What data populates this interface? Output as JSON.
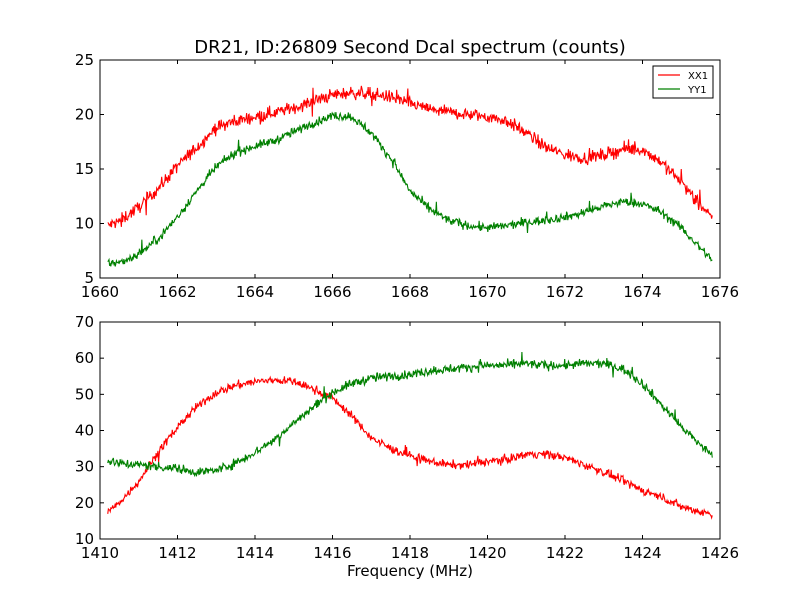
{
  "title": "DR21, ID:26809 Second Dcal spectrum (counts)",
  "colors": {
    "XX1": "#ff0000",
    "YY1": "#008000"
  },
  "chart_data": [
    {
      "type": "line",
      "xlim": [
        1660,
        1676
      ],
      "ylim": [
        5,
        25
      ],
      "xticks": [
        "1660",
        "1662",
        "1664",
        "1666",
        "1668",
        "1670",
        "1672",
        "1674",
        "1676"
      ],
      "yticks": [
        "5",
        "10",
        "15",
        "20",
        "25"
      ],
      "xlabel": "",
      "ylabel": "",
      "legend": {
        "placement": "top-right",
        "entries": [
          "XX1",
          "YY1"
        ]
      },
      "series": [
        {
          "name": "XX1",
          "color": "#ff0000",
          "x": [
            1660.2,
            1660.5,
            1661.0,
            1661.5,
            1662.0,
            1662.5,
            1663.0,
            1663.5,
            1664.0,
            1664.5,
            1665.0,
            1665.5,
            1666.0,
            1666.5,
            1667.0,
            1667.5,
            1668.0,
            1668.5,
            1669.0,
            1669.5,
            1670.0,
            1670.5,
            1671.0,
            1671.5,
            1672.0,
            1672.5,
            1673.0,
            1673.5,
            1674.0,
            1674.5,
            1675.0,
            1675.5,
            1675.8
          ],
          "y": [
            9.8,
            10.2,
            11.5,
            13.2,
            15.3,
            17.0,
            18.8,
            19.4,
            19.8,
            20.2,
            20.6,
            21.2,
            21.8,
            22.0,
            21.9,
            21.6,
            21.0,
            20.5,
            20.2,
            20.0,
            19.8,
            19.4,
            18.3,
            17.0,
            16.3,
            16.0,
            16.3,
            16.8,
            16.8,
            15.6,
            13.8,
            11.6,
            10.4
          ],
          "noise": 0.55
        },
        {
          "name": "YY1",
          "color": "#008000",
          "x": [
            1660.2,
            1660.5,
            1661.0,
            1661.5,
            1662.0,
            1662.5,
            1663.0,
            1663.5,
            1664.0,
            1664.5,
            1665.0,
            1665.5,
            1666.0,
            1666.5,
            1667.0,
            1667.5,
            1668.0,
            1668.5,
            1669.0,
            1669.5,
            1670.0,
            1670.5,
            1671.0,
            1671.5,
            1672.0,
            1672.5,
            1673.0,
            1673.5,
            1674.0,
            1674.5,
            1675.0,
            1675.5,
            1675.8
          ],
          "y": [
            6.4,
            6.4,
            7.2,
            8.6,
            10.6,
            13.0,
            15.2,
            16.5,
            17.1,
            17.6,
            18.4,
            19.2,
            19.9,
            19.8,
            18.3,
            16.0,
            13.0,
            11.3,
            10.3,
            9.8,
            9.6,
            9.8,
            10.1,
            10.3,
            10.6,
            11.0,
            11.6,
            12.0,
            11.8,
            11.0,
            9.6,
            7.7,
            6.7
          ],
          "noise": 0.38
        }
      ]
    },
    {
      "type": "line",
      "xlim": [
        1410,
        1426
      ],
      "ylim": [
        10,
        70
      ],
      "xticks": [
        "1410",
        "1412",
        "1414",
        "1416",
        "1418",
        "1420",
        "1422",
        "1424",
        "1426"
      ],
      "yticks": [
        "10",
        "20",
        "30",
        "40",
        "50",
        "60",
        "70"
      ],
      "xlabel": "Frequency (MHz)",
      "ylabel": "",
      "series": [
        {
          "name": "XX1",
          "color": "#ff0000",
          "x": [
            1410.2,
            1410.5,
            1411.0,
            1411.5,
            1412.0,
            1412.5,
            1413.0,
            1413.5,
            1414.0,
            1414.5,
            1415.0,
            1415.5,
            1416.0,
            1416.5,
            1417.0,
            1417.5,
            1418.0,
            1418.5,
            1419.0,
            1419.5,
            1420.0,
            1420.5,
            1421.0,
            1421.5,
            1422.0,
            1422.5,
            1423.0,
            1423.5,
            1424.0,
            1424.5,
            1425.0,
            1425.5,
            1425.8
          ],
          "y": [
            17.5,
            20.0,
            26.0,
            34.0,
            41.0,
            46.5,
            50.5,
            52.5,
            53.5,
            54.0,
            53.5,
            51.5,
            49.0,
            44.0,
            38.0,
            35.0,
            33.0,
            31.5,
            30.5,
            30.5,
            31.5,
            32.0,
            33.5,
            33.5,
            32.5,
            30.5,
            28.5,
            26.0,
            23.5,
            21.5,
            19.0,
            17.5,
            17.0
          ],
          "noise": 1.1
        },
        {
          "name": "YY1",
          "color": "#008000",
          "x": [
            1410.2,
            1410.5,
            1411.0,
            1411.5,
            1412.0,
            1412.5,
            1413.0,
            1413.5,
            1414.0,
            1414.5,
            1415.0,
            1415.5,
            1416.0,
            1416.5,
            1417.0,
            1417.5,
            1418.0,
            1418.5,
            1419.0,
            1419.5,
            1420.0,
            1420.5,
            1421.0,
            1421.5,
            1422.0,
            1422.5,
            1423.0,
            1423.5,
            1424.0,
            1424.5,
            1425.0,
            1425.5,
            1425.8
          ],
          "y": [
            31.5,
            31.0,
            30.5,
            30.0,
            29.5,
            28.5,
            29.0,
            31.0,
            34.0,
            37.5,
            42.0,
            46.5,
            50.5,
            53.0,
            54.5,
            55.0,
            55.5,
            56.5,
            57.0,
            57.5,
            58.0,
            58.0,
            58.5,
            58.0,
            58.0,
            58.5,
            58.5,
            57.0,
            53.0,
            47.0,
            41.0,
            36.0,
            33.0
          ],
          "noise": 1.2
        }
      ]
    }
  ]
}
